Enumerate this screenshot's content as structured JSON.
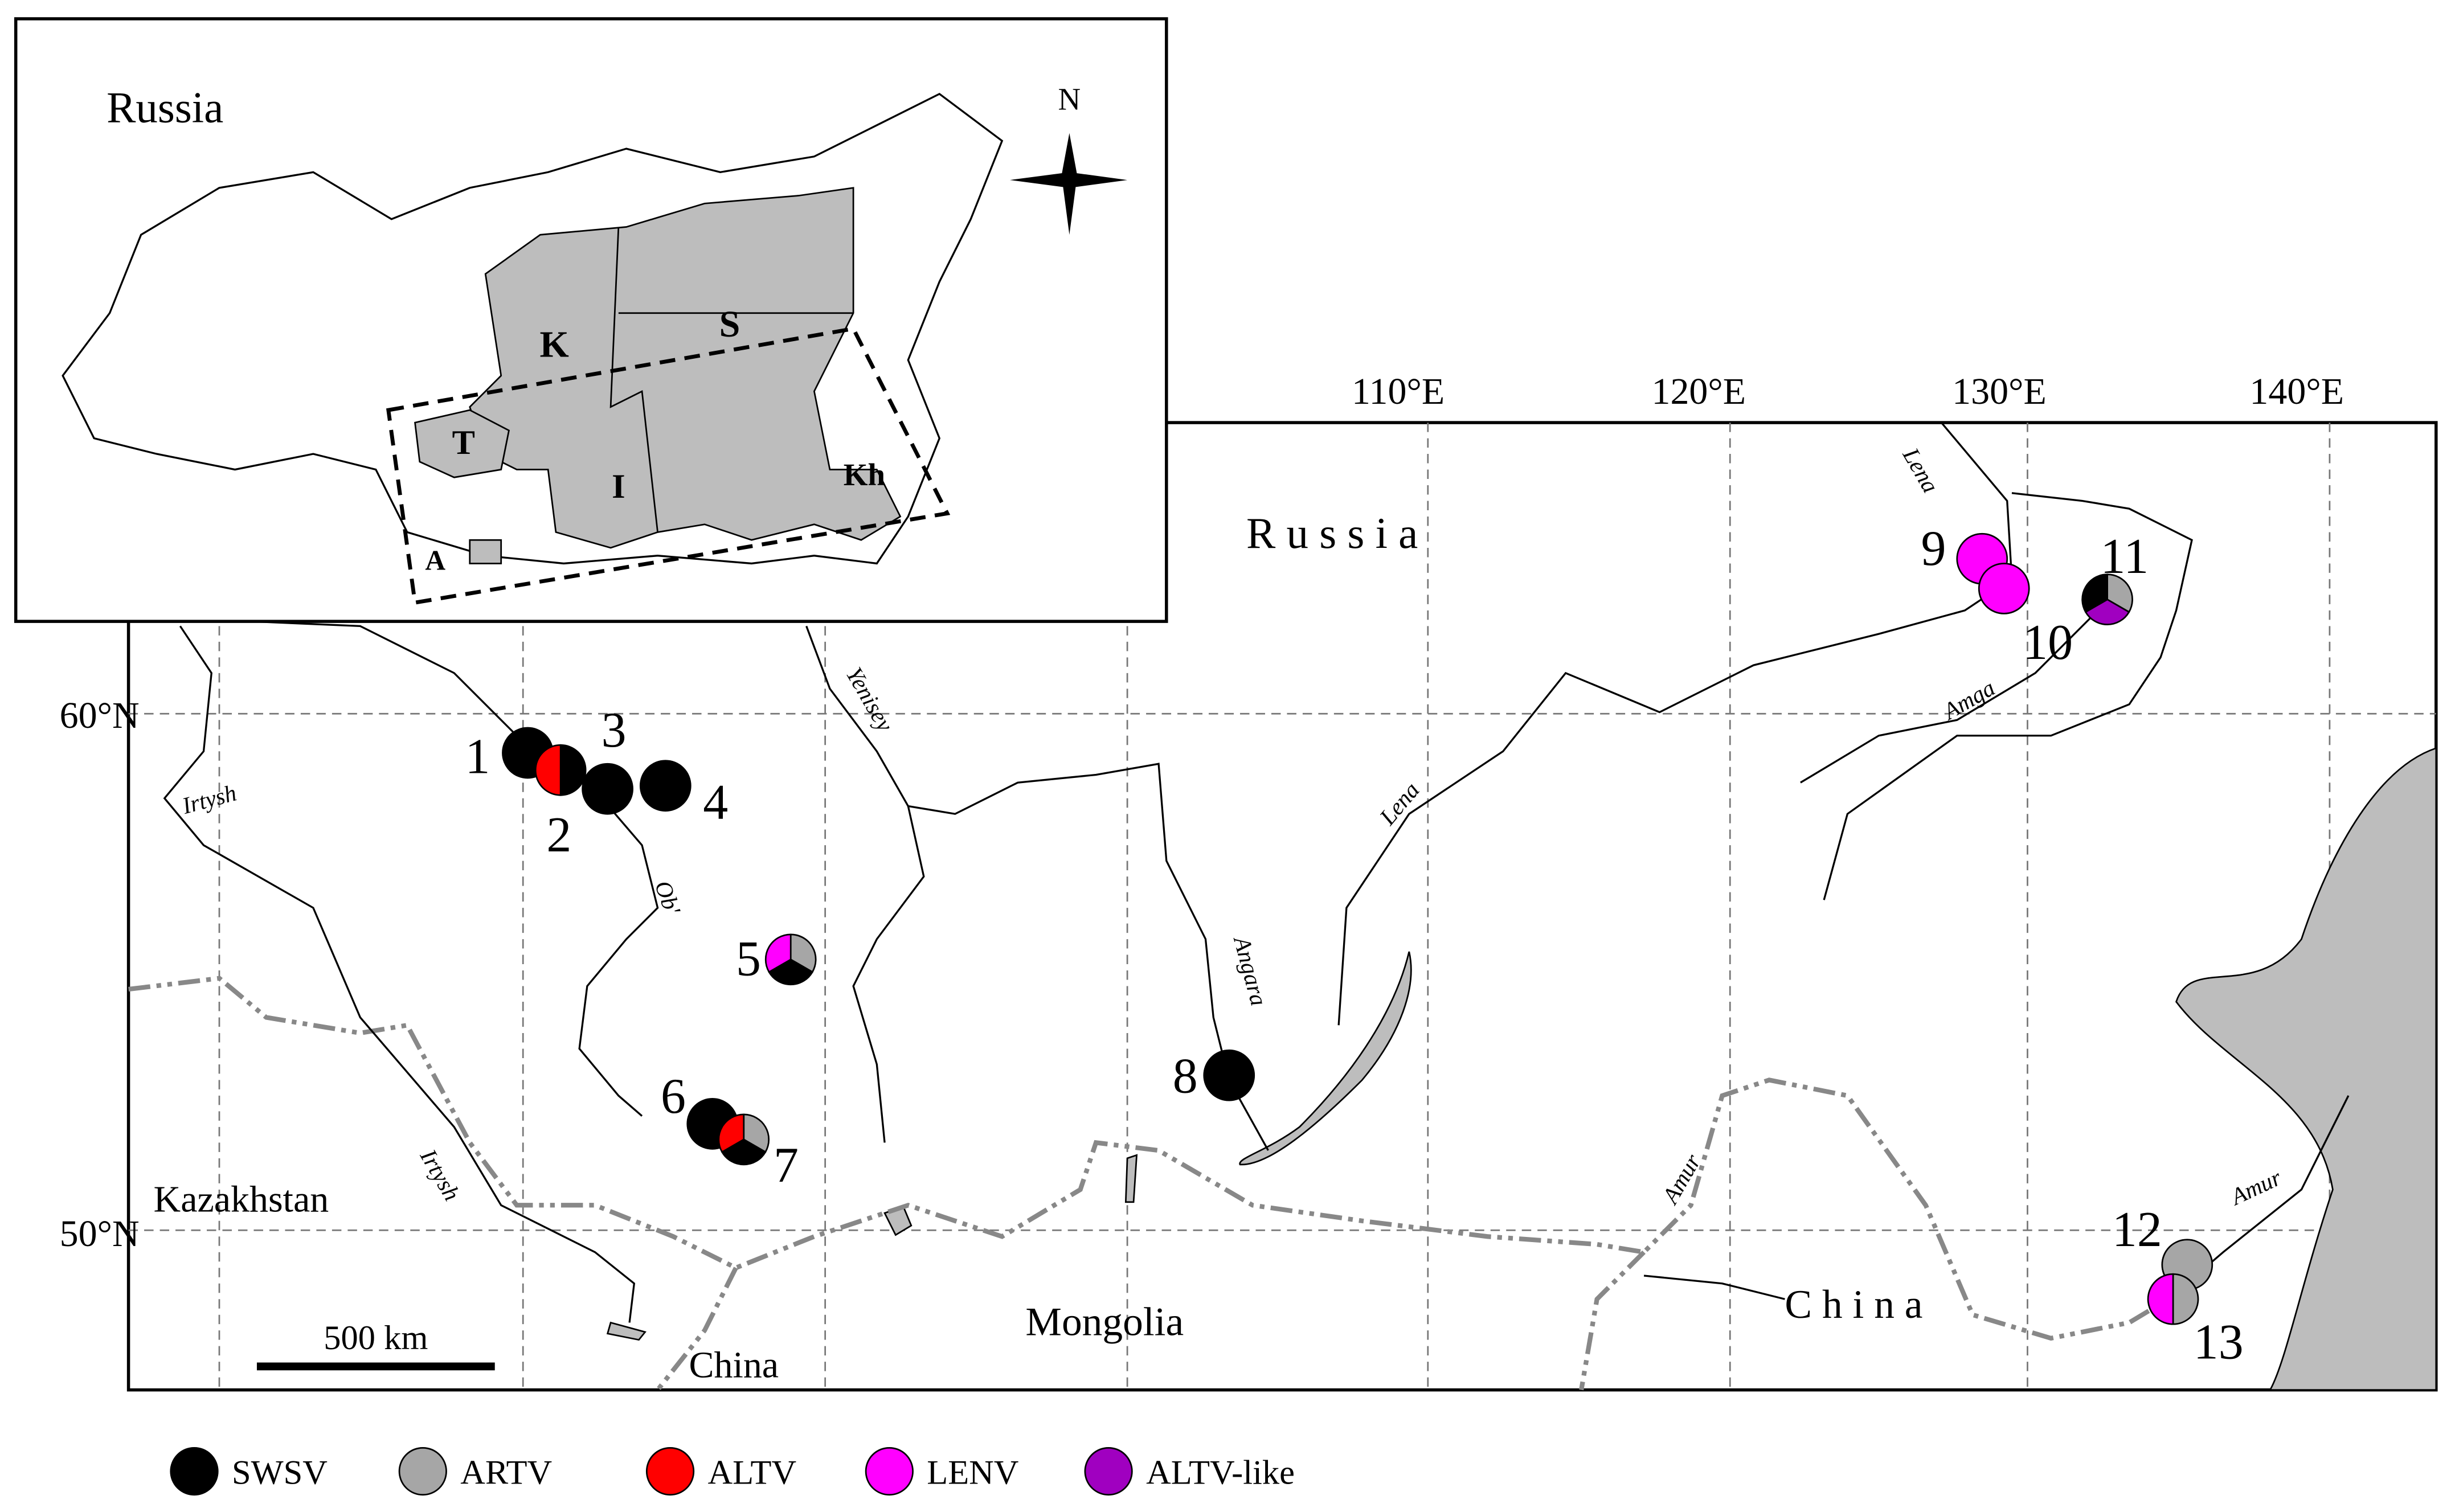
{
  "inset": {
    "title": "Russia",
    "north": "N",
    "regions": [
      "K",
      "S",
      "T",
      "I",
      "Kh",
      "A"
    ]
  },
  "map": {
    "longitudes": [
      "110°E",
      "120°E",
      "130°E",
      "140°E"
    ],
    "latitudes": [
      "60°N",
      "50°N"
    ],
    "countries": [
      "R u s s i a",
      "Kazakhstan",
      "Mongolia",
      "China",
      "C h i n a"
    ],
    "rivers": [
      "Irtysh",
      "Irtysh",
      "Ob'",
      "Yenisey",
      "Angara",
      "Lena",
      "Lena",
      "Amga",
      "Amur",
      "Amur"
    ],
    "scale": "500 km",
    "sites": [
      {
        "label": "1",
        "viruses": [
          "SWSV"
        ]
      },
      {
        "label": "2",
        "viruses": [
          "SWSV",
          "ALTV"
        ]
      },
      {
        "label": "3",
        "viruses": [
          "SWSV"
        ]
      },
      {
        "label": "4",
        "viruses": [
          "SWSV"
        ]
      },
      {
        "label": "5",
        "viruses": [
          "ARTV",
          "SWSV",
          "LENV"
        ]
      },
      {
        "label": "6",
        "viruses": [
          "SWSV"
        ]
      },
      {
        "label": "7",
        "viruses": [
          "ARTV",
          "SWSV",
          "ALTV"
        ]
      },
      {
        "label": "8",
        "viruses": [
          "SWSV"
        ]
      },
      {
        "label": "9",
        "viruses": [
          "LENV"
        ]
      },
      {
        "label": "10",
        "viruses": [
          "LENV"
        ]
      },
      {
        "label": "11",
        "viruses": [
          "ARTV",
          "ALTV-like",
          "SWSV"
        ]
      },
      {
        "label": "12",
        "viruses": [
          "ARTV"
        ]
      },
      {
        "label": "13",
        "viruses": [
          "ARTV",
          "LENV"
        ]
      }
    ]
  },
  "legend": [
    {
      "name": "SWSV",
      "color": "#000000"
    },
    {
      "name": "ARTV",
      "color": "#a6a6a6"
    },
    {
      "name": "ALTV",
      "color": "#ff0000"
    },
    {
      "name": "LENV",
      "color": "#ff00ff"
    },
    {
      "name": "ALTV-like",
      "color": "#a000c0"
    }
  ]
}
